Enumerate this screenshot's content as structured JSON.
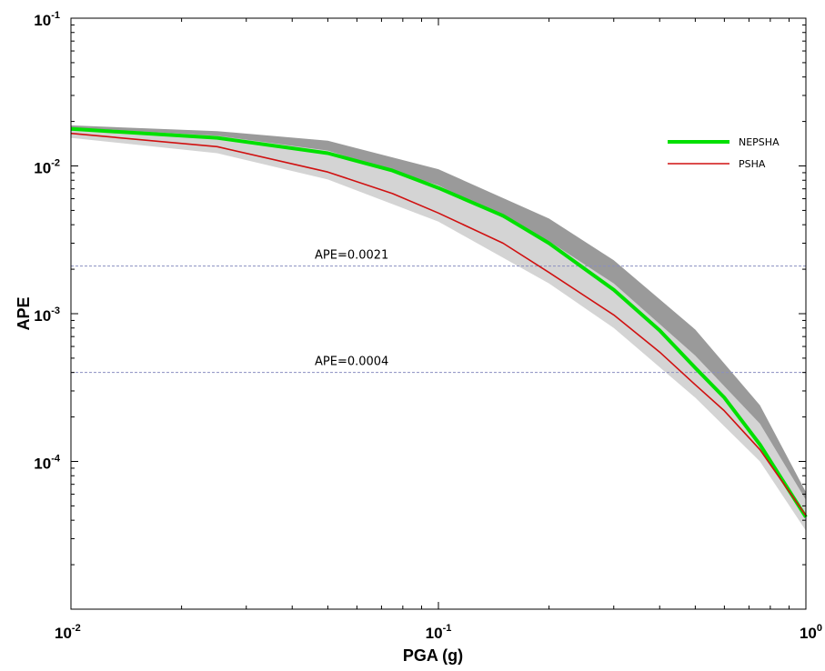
{
  "chart_data": {
    "type": "line",
    "xlabel": "PGA (g)",
    "ylabel": "APE",
    "xscale": "log",
    "yscale": "log",
    "xlim": [
      0.01,
      1
    ],
    "ylim": [
      1e-05,
      0.1
    ],
    "x_ticks": [
      {
        "value": 0.01,
        "base": "10",
        "exp": "-2"
      },
      {
        "value": 0.1,
        "base": "10",
        "exp": "-1"
      },
      {
        "value": 1,
        "base": "10",
        "exp": "0"
      }
    ],
    "y_ticks": [
      {
        "value": 0.1,
        "base": "10",
        "exp": "-1"
      },
      {
        "value": 0.01,
        "base": "10",
        "exp": "-2"
      },
      {
        "value": 0.001,
        "base": "10",
        "exp": "-3"
      },
      {
        "value": 0.0001,
        "base": "10",
        "exp": "-4"
      }
    ],
    "grid": false,
    "legend_position": "top-right",
    "series": [
      {
        "name": "NEPSHA",
        "color": "#00e000",
        "points": [
          [
            0.01,
            0.0178
          ],
          [
            0.025,
            0.0155
          ],
          [
            0.05,
            0.0122
          ],
          [
            0.075,
            0.0093
          ],
          [
            0.1,
            0.0071
          ],
          [
            0.15,
            0.0046
          ],
          [
            0.2,
            0.003
          ],
          [
            0.3,
            0.00145
          ],
          [
            0.4,
            0.00077
          ],
          [
            0.5,
            0.00043
          ],
          [
            0.6,
            0.00027
          ],
          [
            0.75,
            0.00013
          ],
          [
            1,
            4.2e-05
          ]
        ]
      },
      {
        "name": "PSHA",
        "color": "#d01010",
        "points": [
          [
            0.01,
            0.0166
          ],
          [
            0.025,
            0.0135
          ],
          [
            0.05,
            0.0091
          ],
          [
            0.075,
            0.0065
          ],
          [
            0.1,
            0.0048
          ],
          [
            0.15,
            0.003
          ],
          [
            0.2,
            0.0019
          ],
          [
            0.3,
            0.00098
          ],
          [
            0.4,
            0.00055
          ],
          [
            0.5,
            0.00033
          ],
          [
            0.6,
            0.00022
          ],
          [
            0.75,
            0.00012
          ],
          [
            1,
            4.3e-05
          ]
        ]
      }
    ],
    "bands": [
      {
        "color": "#9a9a9a",
        "lower": [
          [
            0.01,
            0.0172
          ],
          [
            0.025,
            0.0145
          ],
          [
            0.05,
            0.0115
          ],
          [
            0.1,
            0.0065
          ],
          [
            0.2,
            0.0028
          ],
          [
            0.3,
            0.0014
          ],
          [
            0.5,
            0.00042
          ],
          [
            0.75,
            0.00014
          ],
          [
            1,
            4.5e-05
          ]
        ],
        "upper": [
          [
            0.01,
            0.0188
          ],
          [
            0.025,
            0.0172
          ],
          [
            0.05,
            0.0148
          ],
          [
            0.1,
            0.0095
          ],
          [
            0.2,
            0.0044
          ],
          [
            0.3,
            0.0023
          ],
          [
            0.5,
            0.00078
          ],
          [
            0.75,
            0.00024
          ],
          [
            1,
            6.2e-05
          ]
        ]
      },
      {
        "color": "#d4d4d4",
        "lower": [
          [
            0.01,
            0.0155
          ],
          [
            0.025,
            0.0122
          ],
          [
            0.05,
            0.0081
          ],
          [
            0.1,
            0.0042
          ],
          [
            0.2,
            0.0016
          ],
          [
            0.3,
            0.0008
          ],
          [
            0.5,
            0.00027
          ],
          [
            0.75,
            0.0001
          ],
          [
            1,
            3.4e-05
          ]
        ],
        "upper": [
          [
            0.01,
            0.0182
          ],
          [
            0.025,
            0.016
          ],
          [
            0.05,
            0.0127
          ],
          [
            0.1,
            0.0074
          ],
          [
            0.2,
            0.0031
          ],
          [
            0.3,
            0.0016
          ],
          [
            0.5,
            0.00052
          ],
          [
            0.75,
            0.00018
          ],
          [
            1,
            5.5e-05
          ]
        ]
      }
    ],
    "reference_lines": [
      {
        "y": 0.0021,
        "label": "APE=0.0021",
        "color": "#8a8fc0"
      },
      {
        "y": 0.0004,
        "label": "APE=0.0004",
        "color": "#8a8fc0"
      }
    ]
  }
}
